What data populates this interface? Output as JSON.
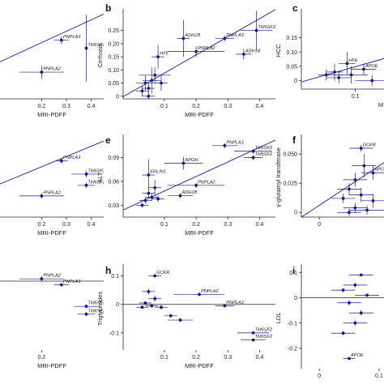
{
  "colors": {
    "marker": "#1a1a8c",
    "line": "#2b2bb8",
    "axis": "#222222",
    "text": "#222222"
  },
  "chart_data": [
    {
      "id": "a",
      "letter": "",
      "type": "scatter",
      "xlabel": "MRI-PDFF",
      "ylabel": "",
      "xlim": [
        0,
        0.45
      ],
      "ylim": [
        -0.01,
        0.12
      ],
      "xticks": [
        0.2,
        0.3,
        0.4
      ],
      "xtick_labels": [
        "0.2",
        "0.3",
        "0.4"
      ],
      "yticks": [],
      "ytick_labels": [],
      "fit_line": [
        [
          0,
          0.04
        ],
        [
          0.45,
          0.117
        ]
      ],
      "points": [
        {
          "x": 0.38,
          "y": 0.066,
          "xerr": 0,
          "yerr": 0.05,
          "label": "TM6SF2"
        },
        {
          "x": 0.28,
          "y": 0.078,
          "xerr": 0.03,
          "yerr": 0.006,
          "label": "PNPLA3"
        },
        {
          "x": 0.2,
          "y": 0.03,
          "xerr": 0.09,
          "yerr": 0.01,
          "label": "PNPLA2"
        }
      ]
    },
    {
      "id": "b",
      "letter": "b",
      "type": "scatter",
      "xlabel": "MRI-PDFF",
      "ylabel": "Cirrhosis",
      "xlim": [
        -0.03,
        0.45
      ],
      "ylim": [
        -0.01,
        0.32
      ],
      "xticks": [
        0.1,
        0.2,
        0.3,
        0.4
      ],
      "xtick_labels": [
        "0.1",
        "0.2",
        "0.3",
        "0.4"
      ],
      "yticks": [
        0,
        0.05,
        0.1,
        0.15,
        0.2,
        0.25
      ],
      "ytick_labels": [
        "0",
        "0.05",
        "0.10",
        "0.15",
        "0.20",
        "0.25"
      ],
      "fit_line": [
        [
          -0.03,
          -0.002
        ],
        [
          0.45,
          0.33
        ]
      ],
      "points": [
        {
          "x": 0.39,
          "y": 0.25,
          "xerr": 0.05,
          "yerr": 0.075,
          "label": "TM6SF2"
        },
        {
          "x": 0.29,
          "y": 0.22,
          "xerr": 0.03,
          "yerr": 0.01,
          "label": "PNPLA3"
        },
        {
          "x": 0.2,
          "y": 0.17,
          "xerr": 0.09,
          "yerr": 0.02,
          "label": "PNPLA2"
        },
        {
          "x": 0.35,
          "y": 0.16,
          "xerr": 0.025,
          "yerr": 0.02,
          "label": "ADH1B"
        },
        {
          "x": 0.16,
          "y": 0.22,
          "xerr": 0.02,
          "yerr": 0.07,
          "label": "ADH1B"
        },
        {
          "x": 0.08,
          "y": 0.15,
          "xerr": 0.02,
          "yerr": 0.045,
          "label": "HFE"
        },
        {
          "x": 0.07,
          "y": 0.08,
          "xerr": 0.05,
          "yerr": 0.03,
          "label": ""
        },
        {
          "x": 0.04,
          "y": 0.05,
          "xerr": 0.03,
          "yerr": 0.03,
          "label": ""
        },
        {
          "x": 0.05,
          "y": 0.03,
          "xerr": 0.02,
          "yerr": 0.02,
          "label": ""
        },
        {
          "x": 0.06,
          "y": 0.06,
          "xerr": 0.03,
          "yerr": 0.05,
          "label": ""
        },
        {
          "x": 0.09,
          "y": 0.05,
          "xerr": 0.02,
          "yerr": 0.03,
          "label": ""
        },
        {
          "x": 0.03,
          "y": 0.02,
          "xerr": 0.02,
          "yerr": 0.02,
          "label": ""
        },
        {
          "x": 0.05,
          "y": 0.0,
          "xerr": 0.02,
          "yerr": 0.01,
          "label": ""
        }
      ]
    },
    {
      "id": "c",
      "letter": "c",
      "type": "scatter",
      "xlabel": "M",
      "ylabel": "HCC",
      "xlim": [
        -0.03,
        0.2
      ],
      "ylim": [
        -0.03,
        0.24
      ],
      "xticks": [
        0.1
      ],
      "xtick_labels": [
        "0.1"
      ],
      "yticks": [
        0,
        0.05,
        0.1,
        0.15
      ],
      "ytick_labels": [
        "0",
        "0.05",
        "0.10",
        "0.15"
      ],
      "fit_line": [
        [
          -0.03,
          -0.005
        ],
        [
          0.2,
          0.09
        ]
      ],
      "points": [
        {
          "x": 0.08,
          "y": 0.06,
          "xerr": 0.02,
          "yerr": 0.04,
          "label": "HFE"
        },
        {
          "x": 0.12,
          "y": 0.04,
          "xerr": 0.03,
          "yerr": 0.02,
          "label": "APOE"
        },
        {
          "x": 0.05,
          "y": 0.03,
          "xerr": 0.02,
          "yerr": 0.03,
          "label": ""
        },
        {
          "x": 0.03,
          "y": 0.02,
          "xerr": 0.02,
          "yerr": 0.02,
          "label": ""
        },
        {
          "x": 0.06,
          "y": 0.01,
          "xerr": 0.03,
          "yerr": 0.02,
          "label": ""
        },
        {
          "x": 0.09,
          "y": 0.02,
          "xerr": 0.04,
          "yerr": 0.03,
          "label": ""
        },
        {
          "x": 0.14,
          "y": 0.0,
          "xerr": 0.04,
          "yerr": 0.02,
          "label": ""
        }
      ]
    },
    {
      "id": "d",
      "letter": "",
      "type": "scatter",
      "xlabel": "MRI-PDFF",
      "ylabel": "",
      "xlim": [
        0,
        0.45
      ],
      "ylim": [
        0.0,
        0.12
      ],
      "xticks": [
        0.2,
        0.3,
        0.4
      ],
      "xtick_labels": [
        "0.2",
        "0.3",
        "0.4"
      ],
      "yticks": [],
      "ytick_labels": [],
      "fit_line": [
        [
          0,
          0.045
        ],
        [
          0.45,
          0.115
        ]
      ],
      "points": [
        {
          "x": 0.28,
          "y": 0.085,
          "xerr": 0.025,
          "yerr": 0.004,
          "label": "PNPLA3"
        },
        {
          "x": 0.38,
          "y": 0.065,
          "xerr": 0.06,
          "yerr": 0.005,
          "label": "TM6SF2"
        },
        {
          "x": 0.38,
          "y": 0.048,
          "xerr": 0.035,
          "yerr": 0.004,
          "label": "TM6SF2"
        },
        {
          "x": 0.2,
          "y": 0.032,
          "xerr": 0.09,
          "yerr": 0.004,
          "label": "PNPLA2"
        }
      ]
    },
    {
      "id": "e",
      "letter": "e",
      "type": "scatter",
      "xlabel": "MRI-PDFF",
      "ylabel": "ALT",
      "xlim": [
        -0.03,
        0.45
      ],
      "ylim": [
        0.015,
        0.115
      ],
      "xticks": [
        0.1,
        0.2,
        0.3,
        0.4
      ],
      "xtick_labels": [
        "0.1",
        "0.2",
        "0.3",
        "0.4"
      ],
      "yticks": [
        0.03,
        0.06,
        0.09
      ],
      "ytick_labels": [
        "0.03",
        "0.06",
        "0.09"
      ],
      "fit_line": [
        [
          -0.03,
          0.024
        ],
        [
          0.45,
          0.112
        ]
      ],
      "points": [
        {
          "x": 0.29,
          "y": 0.105,
          "xerr": 0.04,
          "yerr": 0.003,
          "label": "PNPLA3"
        },
        {
          "x": 0.38,
          "y": 0.098,
          "xerr": 0.06,
          "yerr": 0.003,
          "label": "TM6SF2"
        },
        {
          "x": 0.38,
          "y": 0.09,
          "xerr": 0.03,
          "yerr": 0.003,
          "label": "TM6SF2"
        },
        {
          "x": 0.16,
          "y": 0.083,
          "xerr": 0.06,
          "yerr": 0.008,
          "label": "APOH"
        },
        {
          "x": 0.05,
          "y": 0.068,
          "xerr": 0.02,
          "yerr": 0.02,
          "label": "ERLIN1"
        },
        {
          "x": 0.2,
          "y": 0.055,
          "xerr": 0.09,
          "yerr": 0.003,
          "label": "PNPLA2"
        },
        {
          "x": 0.15,
          "y": 0.042,
          "xerr": 0.04,
          "yerr": 0.003,
          "label": "ADH1B"
        },
        {
          "x": 0.07,
          "y": 0.052,
          "xerr": 0.02,
          "yerr": 0.01,
          "label": ""
        },
        {
          "x": 0.05,
          "y": 0.045,
          "xerr": 0.02,
          "yerr": 0.006,
          "label": ""
        },
        {
          "x": 0.06,
          "y": 0.04,
          "xerr": 0.02,
          "yerr": 0.005,
          "label": ""
        },
        {
          "x": 0.04,
          "y": 0.036,
          "xerr": 0.02,
          "yerr": 0.004,
          "label": ""
        },
        {
          "x": 0.08,
          "y": 0.038,
          "xerr": 0.02,
          "yerr": 0.004,
          "label": ""
        },
        {
          "x": 0.03,
          "y": 0.03,
          "xerr": 0.02,
          "yerr": 0.003,
          "label": ""
        }
      ]
    },
    {
      "id": "f",
      "letter": "f",
      "type": "scatter",
      "xlabel": "",
      "ylabel": "γ-glutamyl transferase",
      "xlim": [
        -0.03,
        0.13
      ],
      "ylim": [
        -0.004,
        0.064
      ],
      "xticks": [
        0
      ],
      "xtick_labels": [
        "0"
      ],
      "yticks": [
        0,
        0.025,
        0.05
      ],
      "ytick_labels": [
        "0",
        "0.025",
        "0.050"
      ],
      "fit_line": [
        [
          -0.03,
          -0.004
        ],
        [
          0.13,
          0.05
        ]
      ],
      "points": [
        {
          "x": 0.07,
          "y": 0.055,
          "xerr": 0.02,
          "yerr": 0.003,
          "label": "GCKR"
        },
        {
          "x": 0.09,
          "y": 0.034,
          "xerr": 0.02,
          "yerr": 0.006,
          "label": "APOH"
        },
        {
          "x": 0.075,
          "y": 0.04,
          "xerr": 0.02,
          "yerr": 0.01,
          "label": ""
        },
        {
          "x": 0.06,
          "y": 0.028,
          "xerr": 0.02,
          "yerr": 0.006,
          "label": ""
        },
        {
          "x": 0.05,
          "y": 0.02,
          "xerr": 0.02,
          "yerr": 0.005,
          "label": ""
        },
        {
          "x": 0.07,
          "y": 0.015,
          "xerr": 0.02,
          "yerr": 0.006,
          "label": ""
        },
        {
          "x": 0.04,
          "y": 0.012,
          "xerr": 0.02,
          "yerr": 0.004,
          "label": ""
        },
        {
          "x": 0.09,
          "y": 0.01,
          "xerr": 0.02,
          "yerr": 0.006,
          "label": ""
        },
        {
          "x": 0.06,
          "y": 0.004,
          "xerr": 0.02,
          "yerr": 0.004,
          "label": ""
        },
        {
          "x": 0.08,
          "y": 0.002,
          "xerr": 0.03,
          "yerr": 0.004,
          "label": ""
        },
        {
          "x": 0.05,
          "y": 0.0,
          "xerr": 0.02,
          "yerr": 0.003,
          "label": ""
        }
      ]
    },
    {
      "id": "g",
      "letter": "",
      "type": "scatter",
      "xlabel": "MRI-PDFF",
      "ylabel": "",
      "xlim": [
        0,
        0.45
      ],
      "ylim": [
        -0.15,
        0.03
      ],
      "xticks": [
        0.2
      ],
      "xtick_labels": [
        "0.2"
      ],
      "yticks": [],
      "ytick_labels": [],
      "fit_line": [
        [
          0,
          0.0
        ],
        [
          0.45,
          0.0
        ]
      ],
      "points": [
        {
          "x": 0.2,
          "y": 0.005,
          "xerr": 0.09,
          "yerr": 0.005,
          "label": "PNPLA2"
        },
        {
          "x": 0.28,
          "y": -0.008,
          "xerr": 0.03,
          "yerr": 0.003,
          "label": "PNPLA3"
        },
        {
          "x": 0.38,
          "y": -0.055,
          "xerr": 0.05,
          "yerr": 0.004,
          "label": "TM6SF2"
        },
        {
          "x": 0.38,
          "y": -0.072,
          "xerr": 0.035,
          "yerr": 0.004,
          "label": "TM6SF2"
        }
      ]
    },
    {
      "id": "h",
      "letter": "h",
      "type": "scatter",
      "xlabel": "MRI-PDFF",
      "ylabel": "Triglycerides",
      "xlim": [
        -0.03,
        0.45
      ],
      "ylim": [
        -0.16,
        0.13
      ],
      "xticks": [
        0.1,
        0.2,
        0.3,
        0.4
      ],
      "xtick_labels": [
        "0.1",
        "0.2",
        "0.3",
        "0.4"
      ],
      "yticks": [
        -0.1,
        0,
        0.1
      ],
      "ytick_labels": [
        "-0.1",
        "0",
        "0.1"
      ],
      "fit_line": [
        [
          -0.03,
          0.0
        ],
        [
          0.45,
          0.0
        ]
      ],
      "points": [
        {
          "x": 0.07,
          "y": 0.1,
          "xerr": 0.02,
          "yerr": 0.005,
          "label": "GCKR"
        },
        {
          "x": 0.21,
          "y": 0.035,
          "xerr": 0.08,
          "yerr": 0.006,
          "label": "PNPLA2"
        },
        {
          "x": 0.29,
          "y": -0.005,
          "xerr": 0.03,
          "yerr": 0.004,
          "label": "PNPLA3"
        },
        {
          "x": 0.38,
          "y": -0.1,
          "xerr": 0.05,
          "yerr": 0.005,
          "label": "TM6SF2"
        },
        {
          "x": 0.38,
          "y": -0.125,
          "xerr": 0.04,
          "yerr": 0.005,
          "label": "TM6SF2"
        },
        {
          "x": 0.05,
          "y": 0.045,
          "xerr": 0.02,
          "yerr": 0.01,
          "label": ""
        },
        {
          "x": 0.07,
          "y": 0.02,
          "xerr": 0.02,
          "yerr": 0.01,
          "label": ""
        },
        {
          "x": 0.04,
          "y": 0.005,
          "xerr": 0.02,
          "yerr": 0.006,
          "label": ""
        },
        {
          "x": 0.06,
          "y": -0.005,
          "xerr": 0.02,
          "yerr": 0.006,
          "label": ""
        },
        {
          "x": 0.09,
          "y": -0.01,
          "xerr": 0.02,
          "yerr": 0.008,
          "label": ""
        },
        {
          "x": 0.03,
          "y": -0.01,
          "xerr": 0.02,
          "yerr": 0.006,
          "label": ""
        },
        {
          "x": 0.12,
          "y": -0.04,
          "xerr": 0.02,
          "yerr": 0.006,
          "label": ""
        },
        {
          "x": 0.15,
          "y": -0.055,
          "xerr": 0.04,
          "yerr": 0.006,
          "label": ""
        }
      ]
    },
    {
      "id": "i",
      "letter": "i",
      "type": "scatter",
      "xlabel": "",
      "ylabel": "LDL",
      "xlim": [
        -0.03,
        0.13
      ],
      "ylim": [
        -0.28,
        0.12
      ],
      "xticks": [
        0,
        0.1
      ],
      "xtick_labels": [
        "0",
        "0.1"
      ],
      "yticks": [
        -0.2,
        -0.1,
        0,
        0.1
      ],
      "ytick_labels": [
        "-0.2",
        "-0.1",
        "0",
        "0.1"
      ],
      "fit_line": [
        [
          -0.03,
          0.0
        ],
        [
          0.13,
          0.0
        ]
      ],
      "points": [
        {
          "x": 0.05,
          "y": -0.24,
          "xerr": 0.01,
          "yerr": 0.006,
          "label": "APOE"
        },
        {
          "x": 0.07,
          "y": 0.09,
          "xerr": 0.02,
          "yerr": 0.005,
          "label": ""
        },
        {
          "x": 0.06,
          "y": 0.05,
          "xerr": 0.02,
          "yerr": 0.008,
          "label": ""
        },
        {
          "x": 0.04,
          "y": 0.03,
          "xerr": 0.02,
          "yerr": 0.008,
          "label": ""
        },
        {
          "x": 0.08,
          "y": 0.01,
          "xerr": 0.02,
          "yerr": 0.006,
          "label": ""
        },
        {
          "x": 0.05,
          "y": -0.02,
          "xerr": 0.02,
          "yerr": 0.01,
          "label": ""
        },
        {
          "x": 0.07,
          "y": -0.06,
          "xerr": 0.02,
          "yerr": 0.01,
          "label": ""
        },
        {
          "x": 0.06,
          "y": -0.1,
          "xerr": 0.02,
          "yerr": 0.01,
          "label": ""
        },
        {
          "x": 0.04,
          "y": -0.14,
          "xerr": 0.02,
          "yerr": 0.008,
          "label": ""
        }
      ]
    }
  ]
}
